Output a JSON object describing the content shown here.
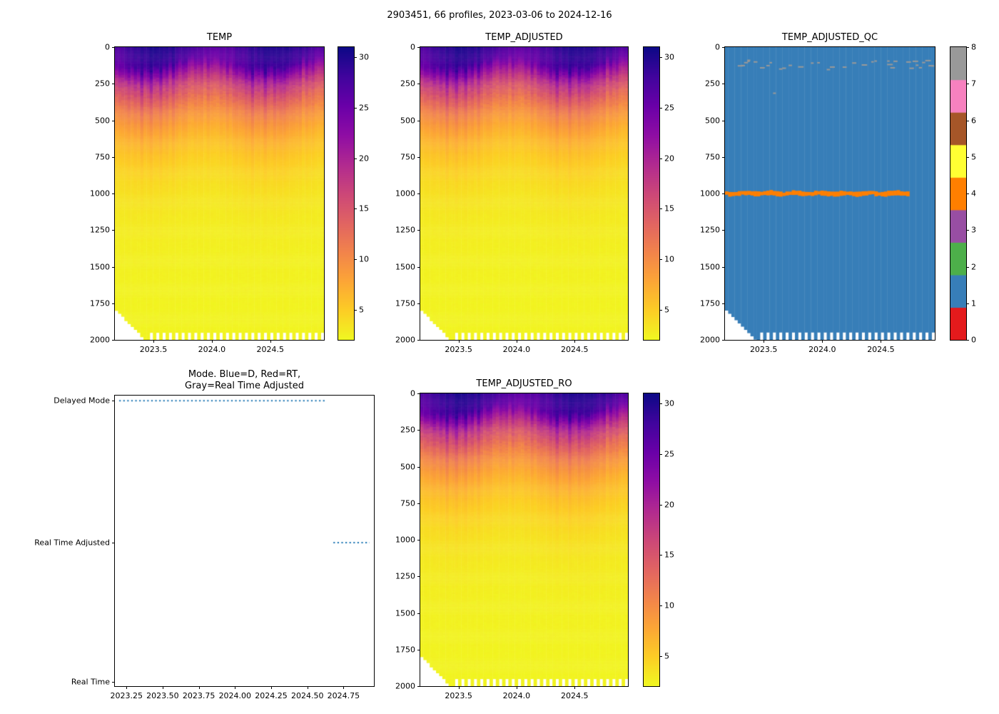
{
  "figure_title": "2903451, 66 profiles, 2023-03-06 to 2024-12-16",
  "colors": {
    "background": "#ffffff",
    "text": "#000000",
    "mode_line": "#1f77b4",
    "plasma": [
      "#0d0887",
      "#41049d",
      "#6a00a8",
      "#8f0da4",
      "#b12a90",
      "#cc4778",
      "#e16462",
      "#f2844b",
      "#fca636",
      "#fcce25",
      "#f0f921"
    ],
    "qc_palette": [
      "#e41a1c",
      "#377eb8",
      "#4daf4a",
      "#984ea3",
      "#ff7f00",
      "#ffff33",
      "#a65628",
      "#f781bf",
      "#999999"
    ]
  },
  "chart_data": [
    {
      "id": "TEMP",
      "type": "heatmap",
      "title": "TEMP",
      "x_range": [
        2023.17,
        2024.96
      ],
      "x_ticks": [
        {
          "value": 2023.5,
          "label": "2023.5"
        },
        {
          "value": 2024.0,
          "label": "2024.0"
        },
        {
          "value": 2024.5,
          "label": "2024.5"
        }
      ],
      "depth_range": [
        0,
        2000
      ],
      "y_ticks": [
        {
          "value": 0,
          "label": "0"
        },
        {
          "value": 250,
          "label": "250"
        },
        {
          "value": 500,
          "label": "500"
        },
        {
          "value": 750,
          "label": "750"
        },
        {
          "value": 1000,
          "label": "1000"
        },
        {
          "value": 1250,
          "label": "1250"
        },
        {
          "value": 1500,
          "label": "1500"
        },
        {
          "value": 1750,
          "label": "1750"
        },
        {
          "value": 2000,
          "label": "2000"
        }
      ],
      "n_profiles": 66,
      "value_range": [
        2,
        31
      ],
      "colorbar_ticks": [
        {
          "value": 5,
          "label": "5"
        },
        {
          "value": 10,
          "label": "10"
        },
        {
          "value": 15,
          "label": "15"
        },
        {
          "value": 20,
          "label": "20"
        },
        {
          "value": 25,
          "label": "25"
        },
        {
          "value": 30,
          "label": "30"
        }
      ],
      "seed": 42,
      "profile": {
        "deep_temp": 2.3,
        "surface_temp_mean": 28.3,
        "surface_temp_seasonal_amp": 1.7,
        "mixed_layer_depth_mean": 115,
        "mixed_layer_depth_seasonal_amp": 45,
        "thermocline_scale_m": 300,
        "shallow_early_profiles": {
          "start_depth": 1800,
          "step": 22,
          "count": 10
        },
        "alternating_bottom_depths": [
          2000,
          1950
        ]
      }
    },
    {
      "id": "TEMP_ADJUSTED",
      "type": "heatmap",
      "title": "TEMP_ADJUSTED",
      "x_range": [
        2023.17,
        2024.96
      ],
      "x_ticks": [
        {
          "value": 2023.5,
          "label": "2023.5"
        },
        {
          "value": 2024.0,
          "label": "2024.0"
        },
        {
          "value": 2024.5,
          "label": "2024.5"
        }
      ],
      "depth_range": [
        0,
        2000
      ],
      "y_ticks": [
        {
          "value": 0,
          "label": "0"
        },
        {
          "value": 250,
          "label": "250"
        },
        {
          "value": 500,
          "label": "500"
        },
        {
          "value": 750,
          "label": "750"
        },
        {
          "value": 1000,
          "label": "1000"
        },
        {
          "value": 1250,
          "label": "1250"
        },
        {
          "value": 1500,
          "label": "1500"
        },
        {
          "value": 1750,
          "label": "1750"
        },
        {
          "value": 2000,
          "label": "2000"
        }
      ],
      "n_profiles": 66,
      "value_range": [
        2,
        31
      ],
      "colorbar_ticks": [
        {
          "value": 5,
          "label": "5"
        },
        {
          "value": 10,
          "label": "10"
        },
        {
          "value": 15,
          "label": "15"
        },
        {
          "value": 20,
          "label": "20"
        },
        {
          "value": 25,
          "label": "25"
        },
        {
          "value": 30,
          "label": "30"
        }
      ],
      "seed": 42,
      "profile": {
        "deep_temp": 2.3,
        "surface_temp_mean": 28.3,
        "surface_temp_seasonal_amp": 1.7,
        "mixed_layer_depth_mean": 115,
        "mixed_layer_depth_seasonal_amp": 45,
        "thermocline_scale_m": 300,
        "shallow_early_profiles": {
          "start_depth": 1800,
          "step": 22,
          "count": 10
        },
        "alternating_bottom_depths": [
          2000,
          1950
        ]
      }
    },
    {
      "id": "TEMP_ADJUSTED_QC",
      "type": "qc_heatmap",
      "title": "TEMP_ADJUSTED_QC",
      "x_range": [
        2023.17,
        2024.96
      ],
      "x_ticks": [
        {
          "value": 2023.5,
          "label": "2023.5"
        },
        {
          "value": 2024.0,
          "label": "2024.0"
        },
        {
          "value": 2024.5,
          "label": "2024.5"
        }
      ],
      "depth_range": [
        0,
        2000
      ],
      "y_ticks": [
        {
          "value": 0,
          "label": "0"
        },
        {
          "value": 250,
          "label": "250"
        },
        {
          "value": 500,
          "label": "500"
        },
        {
          "value": 750,
          "label": "750"
        },
        {
          "value": 1000,
          "label": "1000"
        },
        {
          "value": 1250,
          "label": "1250"
        },
        {
          "value": 1500,
          "label": "1500"
        },
        {
          "value": 1750,
          "label": "1750"
        },
        {
          "value": 2000,
          "label": "2000"
        }
      ],
      "n_profiles": 66,
      "qc_value_range": [
        0,
        8
      ],
      "colorbar_ticks": [
        {
          "value": 0,
          "label": "0"
        },
        {
          "value": 1,
          "label": "1"
        },
        {
          "value": 2,
          "label": "2"
        },
        {
          "value": 3,
          "label": "3"
        },
        {
          "value": 4,
          "label": "4"
        },
        {
          "value": 5,
          "label": "5"
        },
        {
          "value": 6,
          "label": "6"
        },
        {
          "value": 7,
          "label": "7"
        },
        {
          "value": 8,
          "label": "8"
        }
      ],
      "seed": 7,
      "profile": {
        "shallow_early_profiles": {
          "start_depth": 1800,
          "step": 22,
          "count": 10
        },
        "alternating_bottom_depths": [
          2000,
          1950
        ]
      },
      "features": {
        "background_qc": 1,
        "band": {
          "qc": 4,
          "depth_center": 1000,
          "x_start": 2023.17,
          "x_end": 2024.75
        },
        "speckles": {
          "qc": 8,
          "depth_min": 85,
          "depth_max": 150
        },
        "isolated": {
          "qc": 8,
          "depth": 310,
          "x": 2023.58
        }
      }
    },
    {
      "id": "MODE",
      "type": "categorical_line",
      "title": "Mode. Blue=D, Red=RT,\nGray=Real Time Adjusted",
      "x_range": [
        2023.17,
        2024.96
      ],
      "x_ticks": [
        {
          "value": 2023.25,
          "label": "2023.25"
        },
        {
          "value": 2023.5,
          "label": "2023.50"
        },
        {
          "value": 2023.75,
          "label": "2023.75"
        },
        {
          "value": 2024.0,
          "label": "2024.00"
        },
        {
          "value": 2024.25,
          "label": "2024.25"
        },
        {
          "value": 2024.5,
          "label": "2024.50"
        },
        {
          "value": 2024.75,
          "label": "2024.75"
        }
      ],
      "y_categories": [
        "Delayed Mode",
        "Real Time Adjusted",
        "Real Time"
      ],
      "line_style": "dotted",
      "segments": [
        {
          "category": "Delayed Mode",
          "x_start": 2023.2,
          "x_end": 2024.63
        },
        {
          "category": "Real Time Adjusted",
          "x_start": 2024.68,
          "x_end": 2024.93
        }
      ]
    },
    {
      "id": "TEMP_ADJUSTED_RO",
      "type": "heatmap",
      "title": "TEMP_ADJUSTED_RO",
      "x_range": [
        2023.17,
        2024.96
      ],
      "x_ticks": [
        {
          "value": 2023.5,
          "label": "2023.5"
        },
        {
          "value": 2024.0,
          "label": "2024.0"
        },
        {
          "value": 2024.5,
          "label": "2024.5"
        }
      ],
      "depth_range": [
        0,
        2000
      ],
      "y_ticks": [
        {
          "value": 0,
          "label": "0"
        },
        {
          "value": 250,
          "label": "250"
        },
        {
          "value": 500,
          "label": "500"
        },
        {
          "value": 750,
          "label": "750"
        },
        {
          "value": 1000,
          "label": "1000"
        },
        {
          "value": 1250,
          "label": "1250"
        },
        {
          "value": 1500,
          "label": "1500"
        },
        {
          "value": 1750,
          "label": "1750"
        },
        {
          "value": 2000,
          "label": "2000"
        }
      ],
      "n_profiles": 66,
      "value_range": [
        2,
        31
      ],
      "colorbar_ticks": [
        {
          "value": 5,
          "label": "5"
        },
        {
          "value": 10,
          "label": "10"
        },
        {
          "value": 15,
          "label": "15"
        },
        {
          "value": 20,
          "label": "20"
        },
        {
          "value": 25,
          "label": "25"
        },
        {
          "value": 30,
          "label": "30"
        }
      ],
      "seed": 42,
      "profile": {
        "deep_temp": 2.3,
        "surface_temp_mean": 28.3,
        "surface_temp_seasonal_amp": 1.7,
        "mixed_layer_depth_mean": 115,
        "mixed_layer_depth_seasonal_amp": 45,
        "thermocline_scale_m": 300,
        "shallow_early_profiles": {
          "start_depth": 1800,
          "step": 22,
          "count": 10
        },
        "alternating_bottom_depths": [
          2000,
          1950
        ]
      }
    }
  ]
}
